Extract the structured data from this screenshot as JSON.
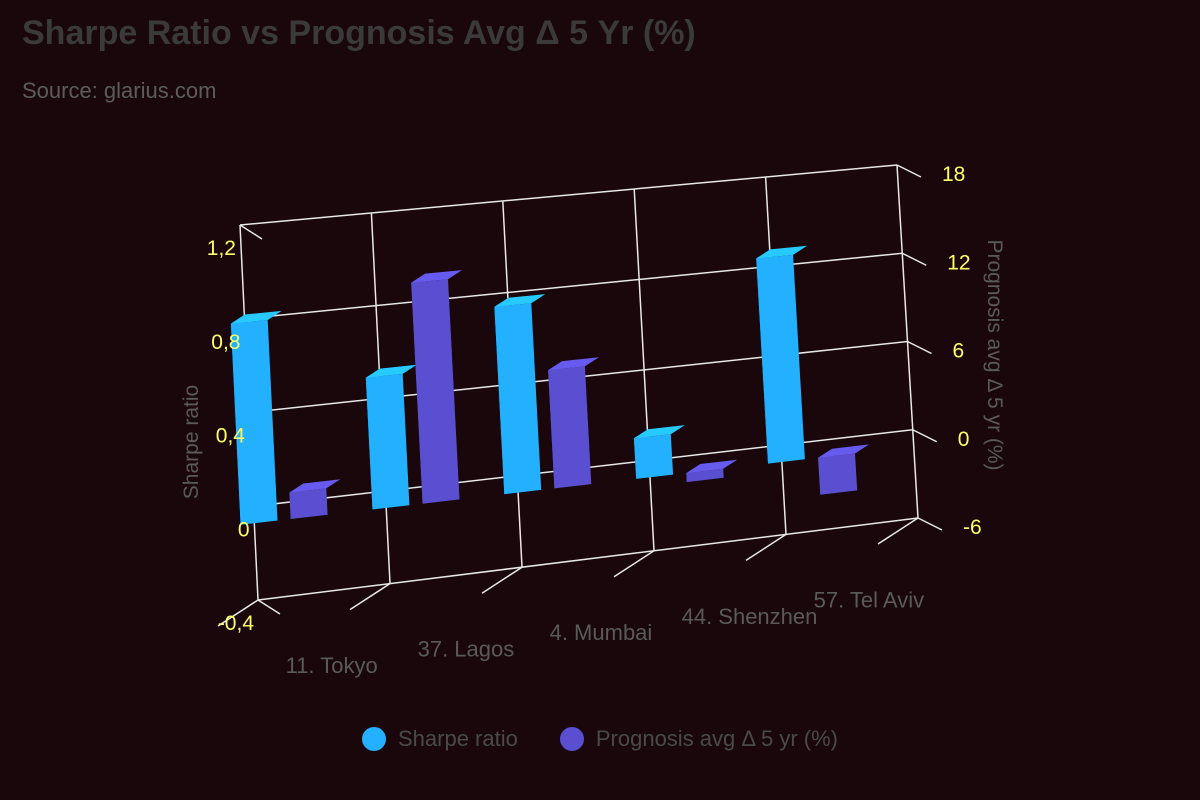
{
  "chart_data": {
    "type": "bar",
    "title": "Sharpe Ratio vs Prognosis Avg Δ 5 Yr (%)",
    "subtitle": "Source: glarius.com",
    "categories": [
      "11. Tokyo",
      "37. Lagos",
      "4. Mumbai",
      "44. Shenzhen",
      "57. Tel Aviv"
    ],
    "series": [
      {
        "name": "Sharpe ratio",
        "axis": "left",
        "color": "#22b0ff",
        "values": [
          0.86,
          0.57,
          0.82,
          0.18,
          0.92
        ]
      },
      {
        "name": "Prognosis avg Δ 5 yr (%)",
        "axis": "right",
        "color": "#5a4fd0",
        "values": [
          1.7,
          14.4,
          7.8,
          -0.6,
          -2.5
        ]
      }
    ],
    "y_left": {
      "label": "Sharpe ratio",
      "ticks": [
        "-0,4",
        "0",
        "0,4",
        "0,8",
        "1,2"
      ],
      "range": [
        -0.4,
        1.2
      ]
    },
    "y_right": {
      "label": "Prognosis avg Δ 5 yr (%)",
      "ticks": [
        "-6",
        "0",
        "6",
        "12",
        "18"
      ],
      "range": [
        -6,
        18
      ]
    },
    "grid": true,
    "legend_position": "bottom",
    "colors": {
      "background": "#19070c",
      "grid": "#e8e8e8",
      "tick_text": "#ffff66",
      "axis_text": "#5a5a5a"
    }
  }
}
